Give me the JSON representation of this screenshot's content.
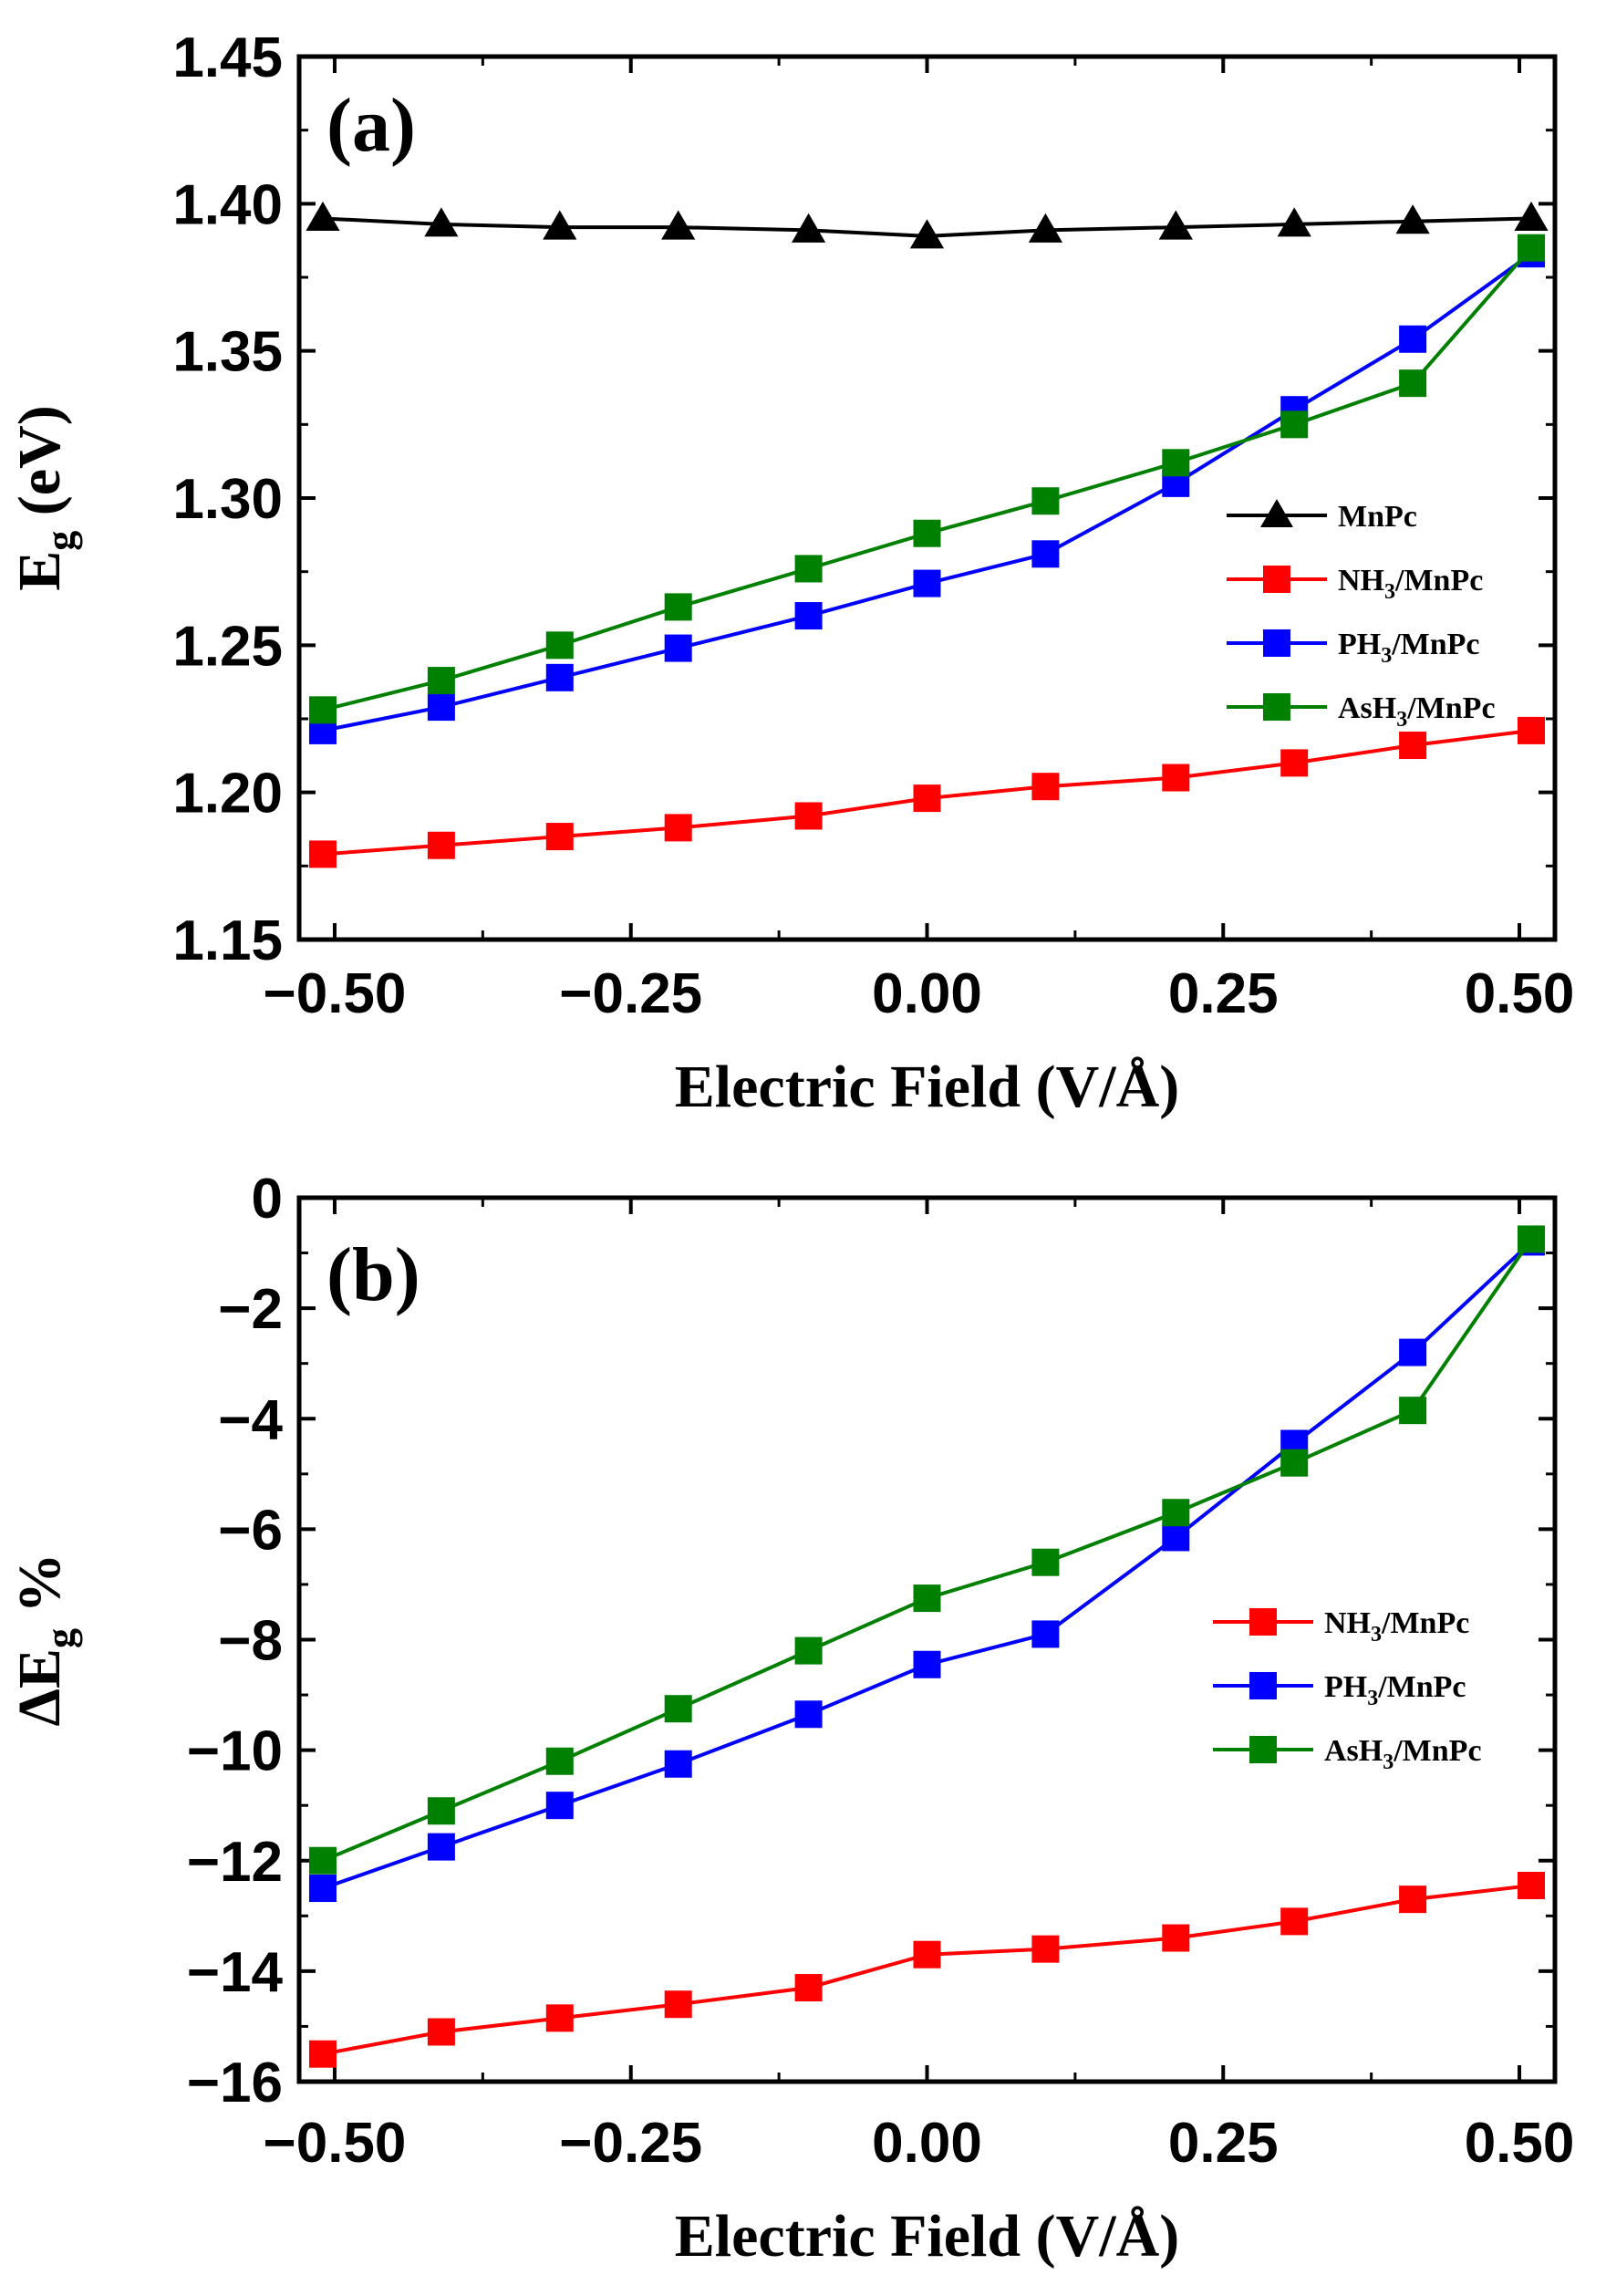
{
  "chart_data": [
    {
      "panel": "(a)",
      "type": "line",
      "xlabel": "Electric Field  (V/Å)",
      "ylabel_main": "E",
      "ylabel_sub": "g",
      "ylabel_rest": " (eV)",
      "xlim": [
        -0.53,
        0.53
      ],
      "ylim": [
        1.15,
        1.45
      ],
      "xticks": [
        -0.5,
        -0.25,
        0.0,
        0.25,
        0.5
      ],
      "xtick_labels": [
        "−0.50",
        "−0.25",
        "0.00",
        "0.25",
        "0.50"
      ],
      "yticks": [
        1.15,
        1.2,
        1.25,
        1.3,
        1.35,
        1.4,
        1.45
      ],
      "ytick_labels": [
        "1.15",
        "1.20",
        "1.25",
        "1.30",
        "1.35",
        "1.40",
        "1.45"
      ],
      "legend_position": "center-right",
      "x": [
        -0.51,
        -0.41,
        -0.31,
        -0.21,
        -0.1,
        0.0,
        0.1,
        0.21,
        0.31,
        0.41,
        0.51
      ],
      "series": [
        {
          "name": "MnPc",
          "main": "MnPc",
          "sub": "",
          "rest": "",
          "color": "#000000",
          "marker": "triangle",
          "values": [
            1.395,
            1.393,
            1.392,
            1.392,
            1.391,
            1.389,
            1.391,
            1.392,
            1.393,
            1.394,
            1.395
          ]
        },
        {
          "name": "NH3/MnPc",
          "main": "NH",
          "sub": "3",
          "rest": "/MnPc",
          "color": "#ff0000",
          "marker": "square",
          "values": [
            1.179,
            1.182,
            1.185,
            1.188,
            1.192,
            1.198,
            1.202,
            1.205,
            1.21,
            1.216,
            1.221
          ]
        },
        {
          "name": "PH3/MnPc",
          "main": "PH",
          "sub": "3",
          "rest": "/MnPc",
          "color": "#0000ff",
          "marker": "square",
          "values": [
            1.221,
            1.229,
            1.239,
            1.249,
            1.26,
            1.271,
            1.281,
            1.305,
            1.33,
            1.354,
            1.383
          ]
        },
        {
          "name": "AsH3/MnPc",
          "main": "AsH",
          "sub": "3",
          "rest": "/MnPc",
          "color": "#008000",
          "marker": "square",
          "values": [
            1.228,
            1.238,
            1.25,
            1.263,
            1.276,
            1.288,
            1.299,
            1.312,
            1.325,
            1.339,
            1.385
          ]
        }
      ]
    },
    {
      "panel": "(b)",
      "type": "line",
      "xlabel": "Electric Field  (V/Å)",
      "ylabel_main": "ΔE",
      "ylabel_sub": "g",
      "ylabel_rest": " %",
      "xlim": [
        -0.53,
        0.53
      ],
      "ylim": [
        -16,
        0
      ],
      "xticks": [
        -0.5,
        -0.25,
        0.0,
        0.25,
        0.5
      ],
      "xtick_labels": [
        "−0.50",
        "−0.25",
        "0.00",
        "0.25",
        "0.50"
      ],
      "yticks": [
        -16,
        -14,
        -12,
        -10,
        -8,
        -6,
        -4,
        -2,
        0
      ],
      "ytick_labels": [
        "−16",
        "−14",
        "−12",
        "−10",
        "−8",
        "−6",
        "−4",
        "−2",
        "0"
      ],
      "legend_position": "center-right",
      "x": [
        -0.51,
        -0.41,
        -0.31,
        -0.21,
        -0.1,
        0.0,
        0.1,
        0.21,
        0.31,
        0.41,
        0.51
      ],
      "series": [
        {
          "name": "NH3/MnPc",
          "main": "NH",
          "sub": "3",
          "rest": "/MnPc",
          "color": "#ff0000",
          "marker": "square",
          "values": [
            -15.5,
            -15.1,
            -14.85,
            -14.6,
            -14.3,
            -13.7,
            -13.6,
            -13.4,
            -13.1,
            -12.7,
            -12.45
          ]
        },
        {
          "name": "PH3/MnPc",
          "main": "PH",
          "sub": "3",
          "rest": "/MnPc",
          "color": "#0000ff",
          "marker": "square",
          "values": [
            -12.5,
            -11.75,
            -11.0,
            -10.25,
            -9.35,
            -8.45,
            -7.9,
            -6.15,
            -4.45,
            -2.8,
            -0.8
          ]
        },
        {
          "name": "AsH3/MnPc",
          "main": "AsH",
          "sub": "3",
          "rest": "/MnPc",
          "color": "#008000",
          "marker": "square",
          "values": [
            -12.0,
            -11.1,
            -10.2,
            -9.25,
            -8.2,
            -7.25,
            -6.6,
            -5.7,
            -4.8,
            -3.85,
            -0.75
          ]
        }
      ]
    }
  ]
}
